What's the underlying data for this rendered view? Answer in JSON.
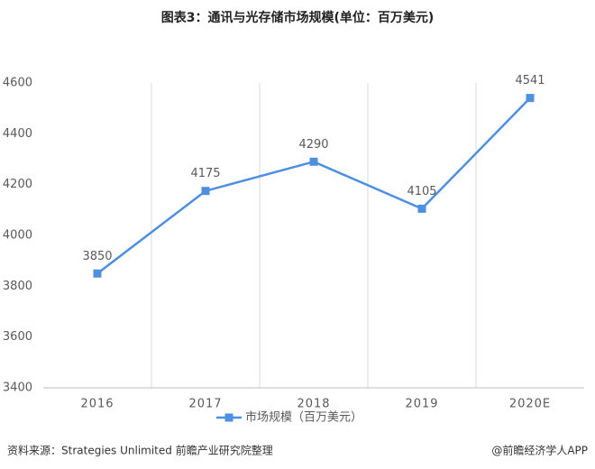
{
  "chart_data": {
    "type": "line",
    "title": "图表3：通讯与光存储市场规模(单位：百万美元)",
    "categories": [
      "2016",
      "2017",
      "2018",
      "2019",
      "2020E"
    ],
    "series": [
      {
        "name": "市场规模（百万美元）",
        "color": "#4f8fe0",
        "values": [
          3850,
          4175,
          4290,
          4105,
          4541
        ]
      }
    ],
    "ylim": [
      3400,
      4600
    ],
    "yticks": [
      3400,
      3600,
      3800,
      4000,
      4200,
      4400,
      4600
    ],
    "grid": "vertical",
    "legend": "bottom"
  },
  "footer": {
    "source": "资料来源：Strategies Unlimited 前瞻产业研究院整理",
    "brand": "@前瞻经济学人APP"
  }
}
